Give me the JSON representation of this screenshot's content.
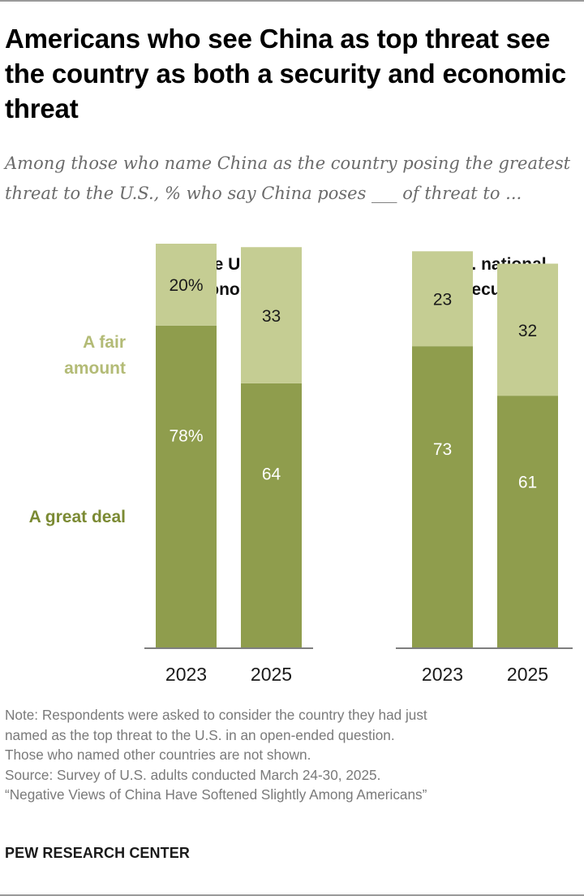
{
  "title": "Americans who see China as top threat see the country as both a security and economic threat",
  "subtitle": "Among those who name China as the country posing the greatest threat to the U.S., % who say China poses ___ of threat to ...",
  "chart_data": {
    "type": "bar",
    "stacked": true,
    "ylim": [
      0,
      100
    ],
    "grid": false,
    "legend_position": "left",
    "colors": {
      "a_great_deal": "#8f9d4d",
      "a_fair_amount": "#c5cd93",
      "legend_fair": "#b3bb76",
      "legend_great": "#7b8a33"
    },
    "groups": [
      {
        "title": [
          "The U.S.",
          "economy"
        ],
        "categories": [
          "2023",
          "2025"
        ]
      },
      {
        "title": [
          "U.S. national",
          "security"
        ],
        "categories": [
          "2023",
          "2025"
        ]
      }
    ],
    "series": [
      {
        "name": "A great deal",
        "legend_lines": [
          "A great deal"
        ],
        "values": [
          [
            78,
            64
          ],
          [
            73,
            61
          ]
        ],
        "labels": [
          [
            "78%",
            "64"
          ],
          [
            "73",
            "61"
          ]
        ]
      },
      {
        "name": "A fair amount",
        "legend_lines": [
          "A fair",
          "amount"
        ],
        "values": [
          [
            20,
            33
          ],
          [
            23,
            32
          ]
        ],
        "labels": [
          [
            "20%",
            "33"
          ],
          [
            "23",
            "32"
          ]
        ]
      }
    ]
  },
  "notes": [
    "Note: Respondents were asked to consider the country they had just",
    "named as the top threat to the U.S. in an open-ended question.",
    "Those who named other countries are not shown.",
    "Source: Survey of U.S. adults conducted March 24-30, 2025.",
    "“Negative Views of China Have Softened Slightly Among Americans”"
  ],
  "brand": "PEW RESEARCH CENTER"
}
